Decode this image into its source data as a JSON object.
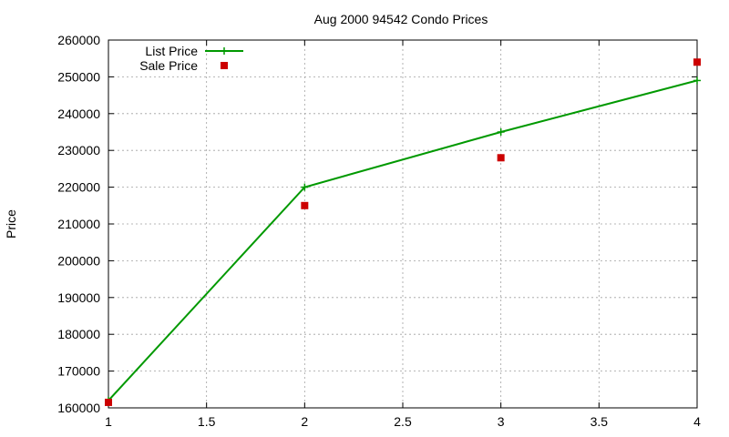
{
  "chart_data": {
    "type": "line",
    "title": "Aug 2000 94542 Condo Prices",
    "xlabel": "",
    "ylabel": "Price",
    "xlim": [
      1,
      4
    ],
    "ylim": [
      160000,
      260000
    ],
    "xticks": [
      1,
      1.5,
      2,
      2.5,
      3,
      3.5,
      4
    ],
    "xtick_labels": [
      "1",
      "1.5",
      "2",
      "2.5",
      "3",
      "3.5",
      "4"
    ],
    "yticks": [
      160000,
      170000,
      180000,
      190000,
      200000,
      210000,
      220000,
      230000,
      240000,
      250000,
      260000
    ],
    "ytick_labels": [
      "160000",
      "170000",
      "180000",
      "190000",
      "200000",
      "210000",
      "220000",
      "230000",
      "240000",
      "250000",
      "260000"
    ],
    "grid": true,
    "legend_position": "top-left",
    "series": [
      {
        "name": "List Price",
        "style": "linespoints",
        "marker": "plus",
        "color": "#009900",
        "x": [
          1,
          2,
          3,
          4
        ],
        "y": [
          162000,
          220000,
          235000,
          249000
        ]
      },
      {
        "name": "Sale Price",
        "style": "points",
        "marker": "square",
        "color": "#cc0000",
        "x": [
          1,
          2,
          3,
          4
        ],
        "y": [
          161500,
          215000,
          228000,
          254000
        ]
      }
    ]
  }
}
